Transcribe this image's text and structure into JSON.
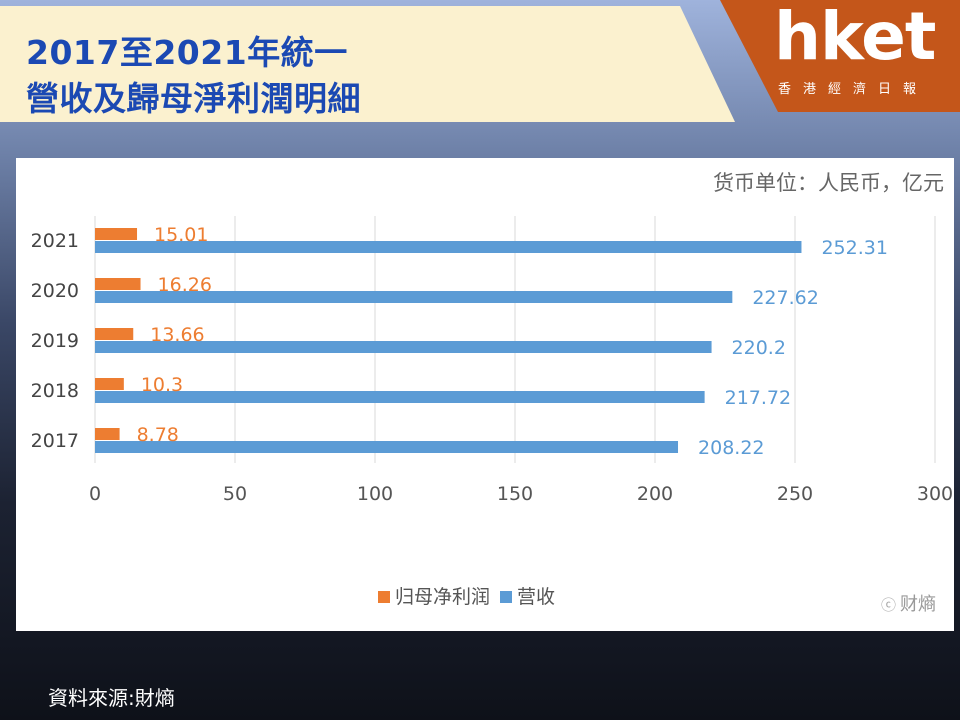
{
  "header": {
    "title_line1": "2017至2021年統一",
    "title_line2": "營收及歸母淨利潤明細"
  },
  "logo": {
    "brand": "hket",
    "sub": "香港經濟日報"
  },
  "source": "資料來源:財熵",
  "colors": {
    "profit": "#ed7d31",
    "revenue": "#5b9bd5",
    "title": "#1b49b3",
    "logo_bg": "#c4561a"
  },
  "chart_data": {
    "type": "bar",
    "orientation": "horizontal",
    "unit_note": "货币单位：人民币，亿元",
    "categories": [
      "2021",
      "2020",
      "2019",
      "2018",
      "2017"
    ],
    "series": [
      {
        "name": "归母净利润",
        "color": "#ed7d31",
        "values": [
          15.01,
          16.26,
          13.66,
          10.3,
          8.78
        ],
        "labels": [
          "15.01",
          "16.26",
          "13.66",
          "10.3",
          "8.78"
        ]
      },
      {
        "name": "营收",
        "color": "#5b9bd5",
        "values": [
          252.31,
          227.62,
          220.2,
          217.72,
          208.22
        ],
        "labels": [
          "252.31",
          "227.62",
          "220.2",
          "217.72",
          "208.22"
        ]
      }
    ],
    "xlim": [
      0,
      300
    ],
    "xticks": [
      "0",
      "50",
      "100",
      "150",
      "200",
      "250",
      "300"
    ],
    "grid": true,
    "legend": "bottom-center",
    "watermark": "财熵"
  }
}
